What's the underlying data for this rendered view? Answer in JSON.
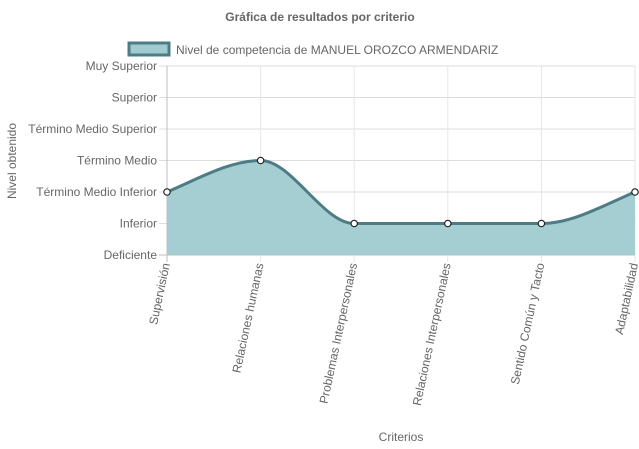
{
  "chart_data": {
    "type": "area",
    "title": "Gráfica de resultados por criterio",
    "xlabel": "Criterios",
    "ylabel": "Nivel obtenido",
    "y_levels": [
      "Deficiente",
      "Inferior",
      "Término Medio Inferior",
      "Término Medio",
      "Término Medio Superior",
      "Superior",
      "Muy Superior"
    ],
    "ylim": [
      0,
      6
    ],
    "categories": [
      "Supervisión",
      "Relaciones humanas",
      "Problemas Interpersonales",
      "Relaciones Interpersonales",
      "Sentido Común y Tacto",
      "Adaptabilidad"
    ],
    "series": [
      {
        "name": "Nivel de competencia de MANUEL OROZCO ARMENDARIZ",
        "values": [
          2,
          3,
          1,
          1,
          1,
          2
        ],
        "fill_color": "#a0cbd0",
        "line_color": "#4e7c84"
      }
    ],
    "grid": true,
    "legend_position": "top"
  }
}
